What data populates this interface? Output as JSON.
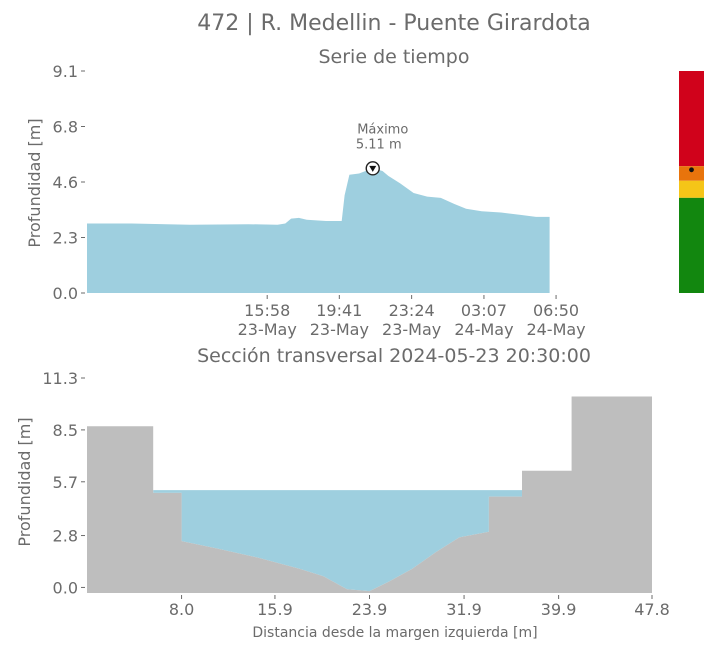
{
  "figure": {
    "title": "472 | R. Medellin - Puente Girardota"
  },
  "colors": {
    "water": "#9ecfdf",
    "terrain": "#bebebe",
    "text": "#6b6b6b",
    "alert_red": "#d0021b",
    "alert_orange": "#e8740c",
    "alert_yellow": "#f5c518",
    "alert_green": "#12870f"
  },
  "chart_data": [
    {
      "type": "area",
      "title": "Serie de tiempo",
      "ylabel": "Profundidad [m]",
      "ylim": [
        0,
        9.1
      ],
      "yticks": [
        "0.0",
        "2.3",
        "4.6",
        "6.8",
        "9.1"
      ],
      "xlim": [
        6.7,
        37.0
      ],
      "xticks": [
        {
          "x": 15.97,
          "time": "15:58",
          "date": "23-May"
        },
        {
          "x": 19.68,
          "time": "19:41",
          "date": "23-May"
        },
        {
          "x": 23.4,
          "time": "23:24",
          "date": "23-May"
        },
        {
          "x": 27.12,
          "time": "03:07",
          "date": "24-May"
        },
        {
          "x": 30.83,
          "time": "06:50",
          "date": "24-May"
        }
      ],
      "x": [
        6.7,
        9.0,
        12.0,
        15.0,
        16.5,
        16.9,
        17.2,
        17.6,
        18.0,
        19.0,
        19.8,
        19.95,
        20.2,
        20.7,
        21.4,
        21.9,
        22.2,
        22.8,
        23.5,
        24.2,
        24.9,
        25.6,
        26.2,
        27.0,
        28.0,
        29.0,
        29.8,
        30.5
      ],
      "y": [
        2.85,
        2.85,
        2.8,
        2.82,
        2.8,
        2.85,
        3.05,
        3.08,
        3.0,
        2.95,
        2.95,
        4.0,
        4.85,
        4.9,
        5.11,
        5.0,
        4.8,
        4.5,
        4.1,
        3.95,
        3.9,
        3.65,
        3.45,
        3.35,
        3.3,
        3.2,
        3.12,
        3.12
      ],
      "annotation": {
        "label": "Máximo",
        "value": "5.11 m",
        "x": 21.4,
        "y": 5.11
      },
      "alert_levels": [
        {
          "color": "red",
          "from": 5.2,
          "to": 9.1
        },
        {
          "color": "orange",
          "from": 4.6,
          "to": 5.2
        },
        {
          "color": "yellow",
          "from": 3.9,
          "to": 4.6
        },
        {
          "color": "green",
          "from": 0.0,
          "to": 3.9
        }
      ],
      "current_level_marker": 5.05
    },
    {
      "type": "area",
      "title": "Sección transversal 2024-05-23 20:30:00",
      "xlabel": "Distancia desde la margen izquierda [m]",
      "ylabel": "Profundidad [m]",
      "xlim": [
        0.0,
        47.8
      ],
      "ylim": [
        -0.3,
        11.3
      ],
      "xticks": [
        "8.0",
        "15.9",
        "23.9",
        "31.9",
        "39.9",
        "47.8"
      ],
      "yticks": [
        "0.0",
        "2.8",
        "5.7",
        "8.5",
        "11.3"
      ],
      "terrain_x": [
        0.0,
        5.6,
        5.6,
        8.0,
        8.0,
        11.0,
        14.5,
        18.0,
        20.0,
        22.0,
        23.9,
        25.5,
        27.5,
        29.5,
        31.5,
        34.0,
        34.0,
        36.8,
        36.8,
        41.0,
        41.0,
        47.8
      ],
      "terrain_y": [
        8.7,
        8.7,
        5.1,
        5.1,
        2.5,
        2.1,
        1.6,
        1.0,
        0.6,
        -0.1,
        -0.2,
        0.3,
        1.0,
        1.9,
        2.7,
        3.0,
        4.9,
        4.9,
        6.3,
        6.3,
        10.3,
        10.3
      ],
      "water_level": 5.25
    }
  ]
}
